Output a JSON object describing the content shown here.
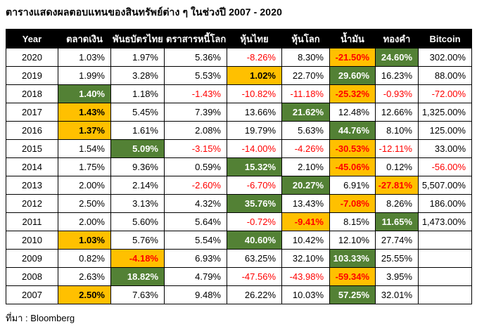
{
  "title": "ตารางแสดงผลตอบแทนของสินทรัพย์ต่าง ๆ ในช่วงปี 2007 - 2020",
  "source_note": "ที่มา : Bloomberg",
  "colors": {
    "best_cell_bg": "#538135",
    "best_cell_text": "#ffffff",
    "worst_cell_bg": "#ffc000",
    "negative_text": "#ff0000",
    "header_bg": "#000000",
    "header_text": "#ffffff"
  },
  "chart_data": {
    "type": "table",
    "title": "ตารางแสดงผลตอบแทนของสินทรัพย์ต่าง ๆ ในช่วงปี 2007 - 2020",
    "columns": [
      "Year",
      "ตลาดเงิน",
      "พันธบัตรไทย",
      "ตราสารหนี้โลก",
      "หุ้นไทย",
      "หุ้นโลก",
      "น้ำมัน",
      "ทองคำ",
      "Bitcoin"
    ],
    "style_legend": {
      "p": "plain",
      "n": "negative-red-text",
      "b": "best-green-cell",
      "w": "worst-orange-cell-positive",
      "wn": "worst-orange-cell-negative"
    },
    "rows": [
      {
        "year": "2020",
        "values": [
          [
            "1.03%",
            "p"
          ],
          [
            "1.97%",
            "p"
          ],
          [
            "5.36%",
            "p"
          ],
          [
            "-8.26%",
            "n"
          ],
          [
            "8.30%",
            "p"
          ],
          [
            "-21.50%",
            "wn"
          ],
          [
            "24.60%",
            "b"
          ],
          [
            "302.00%",
            "p"
          ]
        ]
      },
      {
        "year": "2019",
        "values": [
          [
            "1.99%",
            "p"
          ],
          [
            "3.28%",
            "p"
          ],
          [
            "5.53%",
            "p"
          ],
          [
            "1.02%",
            "w"
          ],
          [
            "22.70%",
            "p"
          ],
          [
            "29.60%",
            "b"
          ],
          [
            "16.23%",
            "p"
          ],
          [
            "88.00%",
            "p"
          ]
        ]
      },
      {
        "year": "2018",
        "values": [
          [
            "1.40%",
            "b"
          ],
          [
            "1.18%",
            "p"
          ],
          [
            "-1.43%",
            "n"
          ],
          [
            "-10.82%",
            "n"
          ],
          [
            "-11.18%",
            "n"
          ],
          [
            "-25.32%",
            "wn"
          ],
          [
            "-0.93%",
            "n"
          ],
          [
            "-72.00%",
            "n"
          ]
        ]
      },
      {
        "year": "2017",
        "values": [
          [
            "1.43%",
            "w"
          ],
          [
            "5.45%",
            "p"
          ],
          [
            "7.39%",
            "p"
          ],
          [
            "13.66%",
            "p"
          ],
          [
            "21.62%",
            "b"
          ],
          [
            "12.48%",
            "p"
          ],
          [
            "12.66%",
            "p"
          ],
          [
            "1,325.00%",
            "p"
          ]
        ]
      },
      {
        "year": "2016",
        "values": [
          [
            "1.37%",
            "w"
          ],
          [
            "1.61%",
            "p"
          ],
          [
            "2.08%",
            "p"
          ],
          [
            "19.79%",
            "p"
          ],
          [
            "5.63%",
            "p"
          ],
          [
            "44.76%",
            "b"
          ],
          [
            "8.10%",
            "p"
          ],
          [
            "125.00%",
            "p"
          ]
        ]
      },
      {
        "year": "2015",
        "values": [
          [
            "1.54%",
            "p"
          ],
          [
            "5.09%",
            "b"
          ],
          [
            "-3.15%",
            "n"
          ],
          [
            "-14.00%",
            "n"
          ],
          [
            "-4.26%",
            "n"
          ],
          [
            "-30.53%",
            "wn"
          ],
          [
            "-12.11%",
            "n"
          ],
          [
            "33.00%",
            "p"
          ]
        ]
      },
      {
        "year": "2014",
        "values": [
          [
            "1.75%",
            "p"
          ],
          [
            "9.36%",
            "p"
          ],
          [
            "0.59%",
            "p"
          ],
          [
            "15.32%",
            "b"
          ],
          [
            "2.10%",
            "p"
          ],
          [
            "-45.06%",
            "wn"
          ],
          [
            "0.12%",
            "p"
          ],
          [
            "-56.00%",
            "n"
          ]
        ]
      },
      {
        "year": "2013",
        "values": [
          [
            "2.00%",
            "p"
          ],
          [
            "2.14%",
            "p"
          ],
          [
            "-2.60%",
            "n"
          ],
          [
            "-6.70%",
            "n"
          ],
          [
            "20.27%",
            "b"
          ],
          [
            "6.91%",
            "p"
          ],
          [
            "-27.81%",
            "wn"
          ],
          [
            "5,507.00%",
            "p"
          ]
        ]
      },
      {
        "year": "2012",
        "values": [
          [
            "2.50%",
            "p"
          ],
          [
            "3.13%",
            "p"
          ],
          [
            "4.32%",
            "p"
          ],
          [
            "35.76%",
            "b"
          ],
          [
            "13.43%",
            "p"
          ],
          [
            "-7.08%",
            "wn"
          ],
          [
            "8.26%",
            "p"
          ],
          [
            "186.00%",
            "p"
          ]
        ]
      },
      {
        "year": "2011",
        "values": [
          [
            "2.00%",
            "p"
          ],
          [
            "5.60%",
            "p"
          ],
          [
            "5.64%",
            "p"
          ],
          [
            "-0.72%",
            "n"
          ],
          [
            "-9.41%",
            "wn"
          ],
          [
            "8.15%",
            "p"
          ],
          [
            "11.65%",
            "b"
          ],
          [
            "1,473.00%",
            "p"
          ]
        ]
      },
      {
        "year": "2010",
        "values": [
          [
            "1.03%",
            "w"
          ],
          [
            "5.76%",
            "p"
          ],
          [
            "5.54%",
            "p"
          ],
          [
            "40.60%",
            "b"
          ],
          [
            "10.42%",
            "p"
          ],
          [
            "12.10%",
            "p"
          ],
          [
            "27.74%",
            "p"
          ],
          [
            "",
            "p"
          ]
        ]
      },
      {
        "year": "2009",
        "values": [
          [
            "0.82%",
            "p"
          ],
          [
            "-4.18%",
            "wn"
          ],
          [
            "6.93%",
            "p"
          ],
          [
            "63.25%",
            "p"
          ],
          [
            "32.10%",
            "p"
          ],
          [
            "103.33%",
            "b"
          ],
          [
            "25.55%",
            "p"
          ],
          [
            "",
            "p"
          ]
        ]
      },
      {
        "year": "2008",
        "values": [
          [
            "2.63%",
            "p"
          ],
          [
            "18.82%",
            "b"
          ],
          [
            "4.79%",
            "p"
          ],
          [
            "-47.56%",
            "n"
          ],
          [
            "-43.98%",
            "n"
          ],
          [
            "-59.34%",
            "wn"
          ],
          [
            "3.95%",
            "p"
          ],
          [
            "",
            "p"
          ]
        ]
      },
      {
        "year": "2007",
        "values": [
          [
            "2.50%",
            "w"
          ],
          [
            "7.63%",
            "p"
          ],
          [
            "9.48%",
            "p"
          ],
          [
            "26.22%",
            "p"
          ],
          [
            "10.03%",
            "p"
          ],
          [
            "57.25%",
            "b"
          ],
          [
            "32.01%",
            "p"
          ],
          [
            "",
            "p"
          ]
        ]
      }
    ]
  }
}
